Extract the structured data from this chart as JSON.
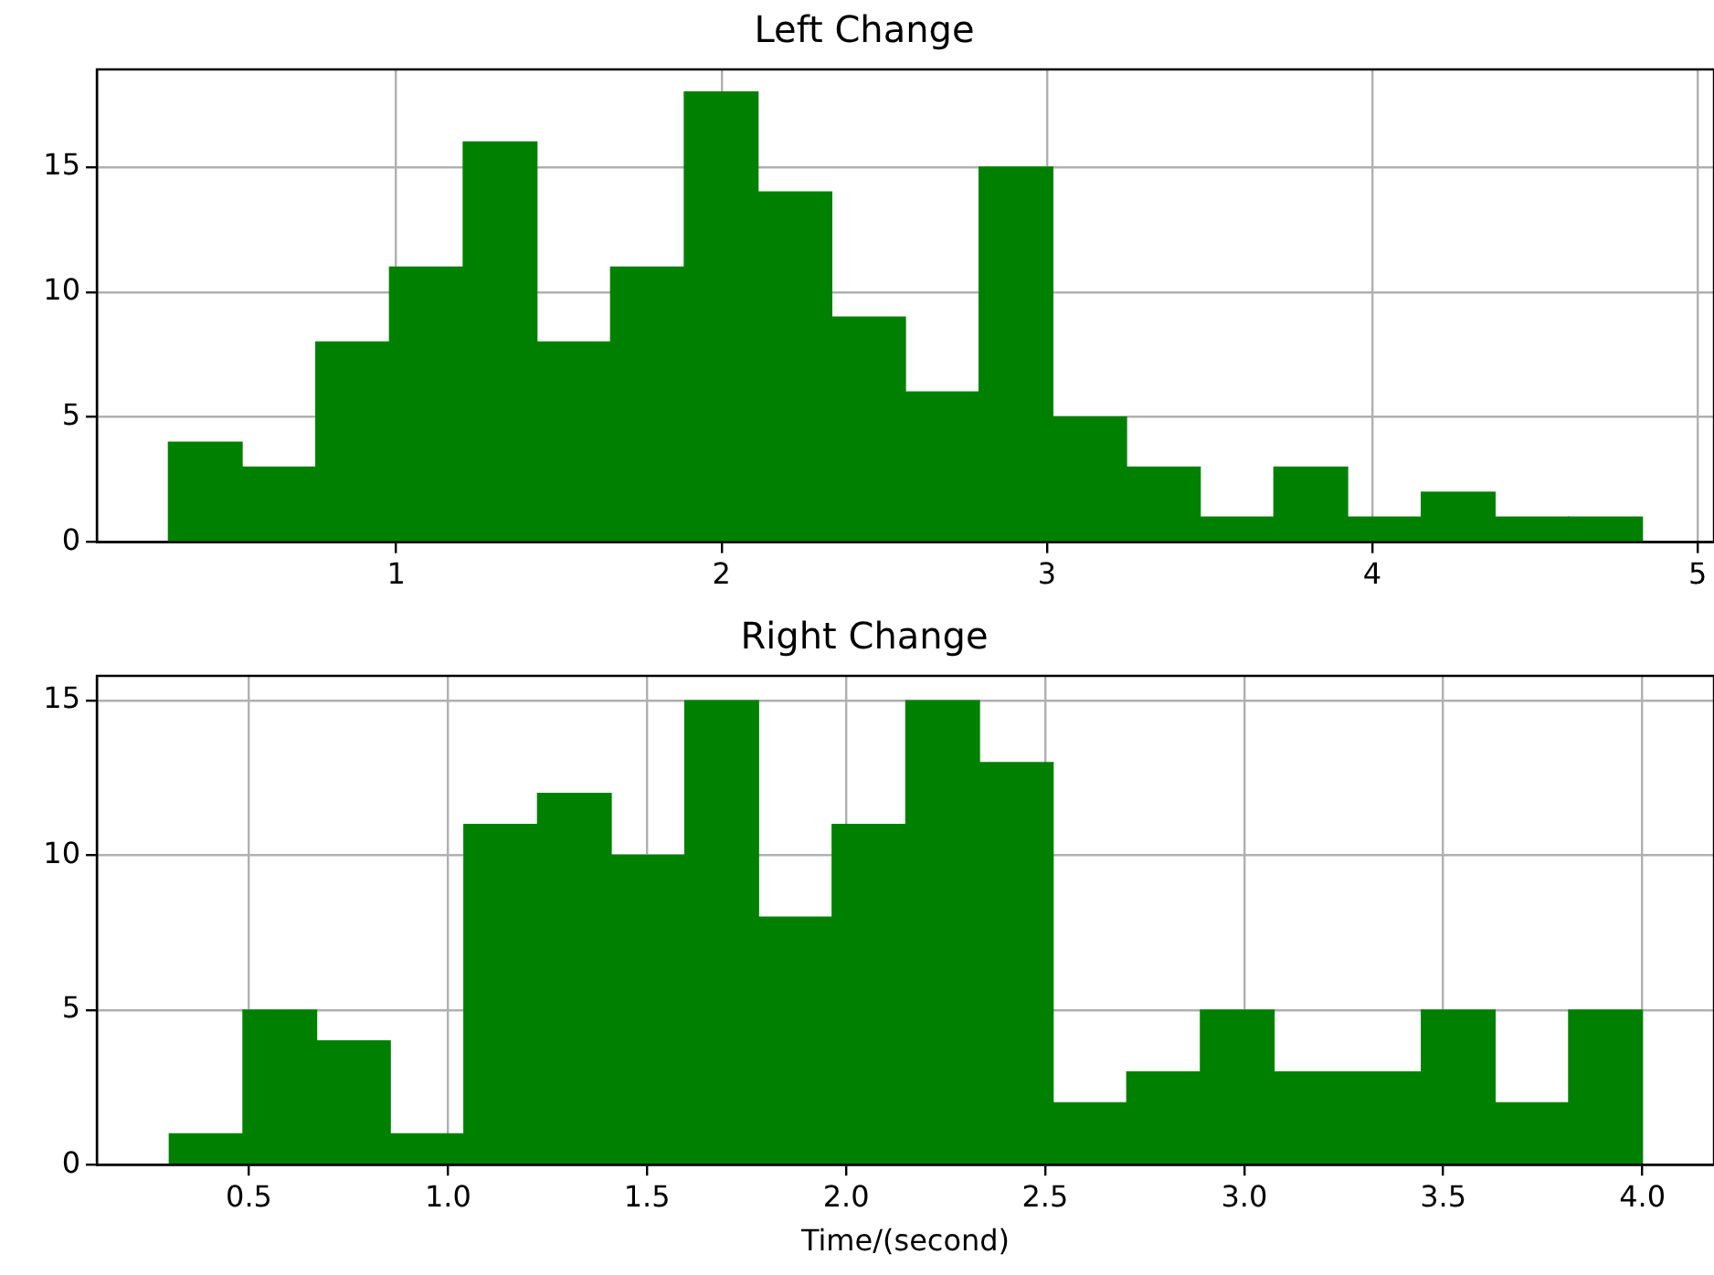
{
  "chart_data": [
    {
      "type": "histogram",
      "title": "Left Change",
      "color": "#008000",
      "bins": [
        0.3,
        0.5265,
        0.753,
        0.9795,
        1.206,
        1.4325,
        1.659,
        1.8855,
        2.112,
        2.3385,
        2.565,
        2.7915,
        3.018,
        3.2445,
        3.471,
        3.6975,
        3.924,
        4.1505,
        4.377,
        4.6035,
        4.83
      ],
      "values": [
        4,
        3,
        8,
        11,
        16,
        8,
        11,
        18,
        14,
        9,
        6,
        15,
        5,
        3,
        1,
        3,
        1,
        2,
        1,
        1
      ],
      "xlim": [
        0.08,
        5.05
      ],
      "xticks": [
        1,
        2,
        3,
        4,
        5
      ],
      "ylim": [
        0,
        18.9
      ],
      "yticks": [
        0,
        5,
        10,
        15
      ],
      "grid": true
    },
    {
      "type": "histogram",
      "title": "Right Change",
      "xlabel": "Time/(second)",
      "color": "#008000",
      "bins": [
        0.3,
        0.485,
        0.67,
        0.855,
        1.04,
        1.225,
        1.41,
        1.595,
        1.78,
        1.965,
        2.15,
        2.335,
        2.52,
        2.705,
        2.89,
        3.075,
        3.26,
        3.445,
        3.63,
        3.815,
        4.0
      ],
      "values": [
        1,
        5,
        4,
        1,
        11,
        12,
        10,
        15,
        8,
        11,
        15,
        13,
        2,
        3,
        5,
        3,
        3,
        5,
        2,
        5
      ],
      "xlim": [
        0.118,
        4.18
      ],
      "xticks": [
        {
          "value": 0.5,
          "label": "0.5"
        },
        {
          "value": 1,
          "label": "1.0"
        },
        {
          "value": 1.5,
          "label": "1.5"
        },
        {
          "value": 2,
          "label": "2.0"
        },
        {
          "value": 2.5,
          "label": "2.5"
        },
        {
          "value": 3,
          "label": "3.0"
        },
        {
          "value": 3.5,
          "label": "3.5"
        },
        {
          "value": 4,
          "label": "4.0"
        }
      ],
      "ylim": [
        0,
        15.8
      ],
      "yticks": [
        0,
        5,
        10,
        15
      ],
      "grid": true
    }
  ]
}
